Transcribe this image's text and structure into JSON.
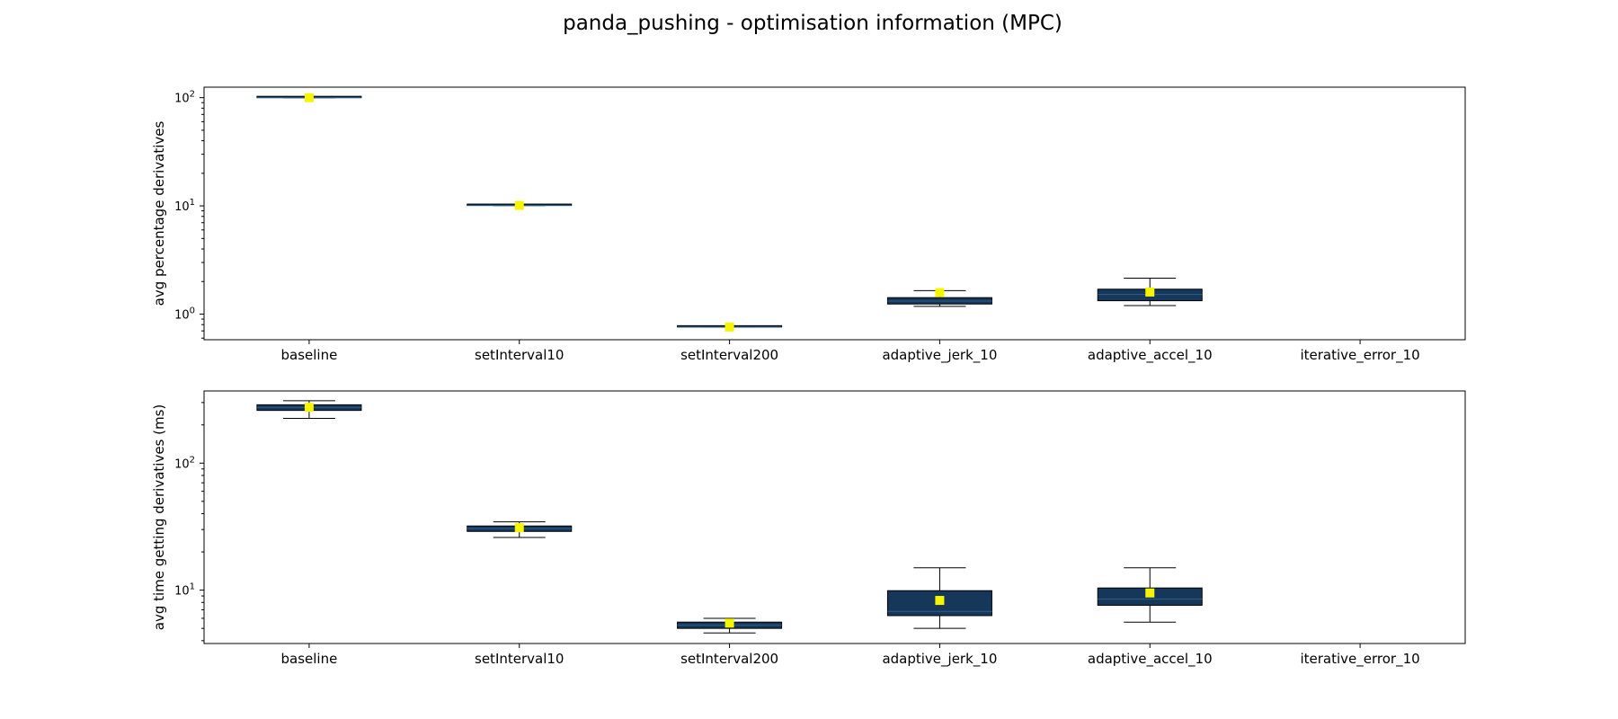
{
  "figure": {
    "title": "panda_pushing - optimisation information (MPC)"
  },
  "colors": {
    "box_fill": "#14375a",
    "mean_marker": "#f5f500",
    "median_line": "#2f5f8a",
    "axes": "#000000"
  },
  "chart_data": [
    {
      "type": "box",
      "title": "",
      "xlabel": "",
      "ylabel": "avg percentage derivatives",
      "yscale": "log",
      "ylim": [
        0.58,
        125
      ],
      "yticks": [
        {
          "value": 1,
          "label": "10",
          "exp": "0"
        },
        {
          "value": 10,
          "label": "10",
          "exp": "1"
        },
        {
          "value": 100,
          "label": "10",
          "exp": "2"
        }
      ],
      "grid": false,
      "categories": [
        "baseline",
        "setInterval10",
        "setInterval200",
        "adaptive_jerk_10",
        "adaptive_accel_10",
        "iterative_error_10"
      ],
      "boxes": [
        {
          "category": "baseline",
          "whislo": 100,
          "q1": 100,
          "median": 100,
          "q3": 100,
          "whishi": 100,
          "mean": 100
        },
        {
          "category": "setInterval10",
          "whislo": 10.1,
          "q1": 10.1,
          "median": 10.1,
          "q3": 10.1,
          "whishi": 10.1,
          "mean": 10.1
        },
        {
          "category": "setInterval200",
          "whislo": 0.76,
          "q1": 0.76,
          "median": 0.76,
          "q3": 0.76,
          "whishi": 0.76,
          "mean": 0.76
        },
        {
          "category": "adaptive_jerk_10",
          "whislo": 1.18,
          "q1": 1.24,
          "median": 1.32,
          "q3": 1.42,
          "whishi": 1.65,
          "mean": 1.58
        },
        {
          "category": "adaptive_accel_10",
          "whislo": 1.2,
          "q1": 1.33,
          "median": 1.52,
          "q3": 1.7,
          "whishi": 2.15,
          "mean": 1.6
        },
        {
          "category": "iterative_error_10",
          "whislo": null,
          "q1": null,
          "median": null,
          "q3": null,
          "whishi": null,
          "mean": null
        }
      ]
    },
    {
      "type": "box",
      "title": "",
      "xlabel": "",
      "ylabel": "avg time getting derivatives (ms)",
      "yscale": "log",
      "ylim": [
        3.8,
        370
      ],
      "yticks": [
        {
          "value": 10,
          "label": "10",
          "exp": "1"
        },
        {
          "value": 100,
          "label": "10",
          "exp": "2"
        }
      ],
      "grid": false,
      "categories": [
        "baseline",
        "setInterval10",
        "setInterval200",
        "adaptive_jerk_10",
        "adaptive_accel_10",
        "iterative_error_10"
      ],
      "boxes": [
        {
          "category": "baseline",
          "whislo": 225,
          "q1": 260,
          "median": 275,
          "q3": 288,
          "whishi": 310,
          "mean": 275
        },
        {
          "category": "setInterval10",
          "whislo": 26,
          "q1": 29,
          "median": 30.5,
          "q3": 32,
          "whishi": 34.5,
          "mean": 31
        },
        {
          "category": "setInterval200",
          "whislo": 4.6,
          "q1": 5.0,
          "median": 5.3,
          "q3": 5.6,
          "whishi": 6.0,
          "mean": 5.5
        },
        {
          "category": "adaptive_jerk_10",
          "whislo": 5.0,
          "q1": 6.3,
          "median": 6.8,
          "q3": 9.9,
          "whishi": 15,
          "mean": 8.3
        },
        {
          "category": "adaptive_accel_10",
          "whislo": 5.6,
          "q1": 7.6,
          "median": 8.5,
          "q3": 10.4,
          "whishi": 15,
          "mean": 9.5
        },
        {
          "category": "iterative_error_10",
          "whislo": null,
          "q1": null,
          "median": null,
          "q3": null,
          "whishi": null,
          "mean": null
        }
      ]
    }
  ]
}
